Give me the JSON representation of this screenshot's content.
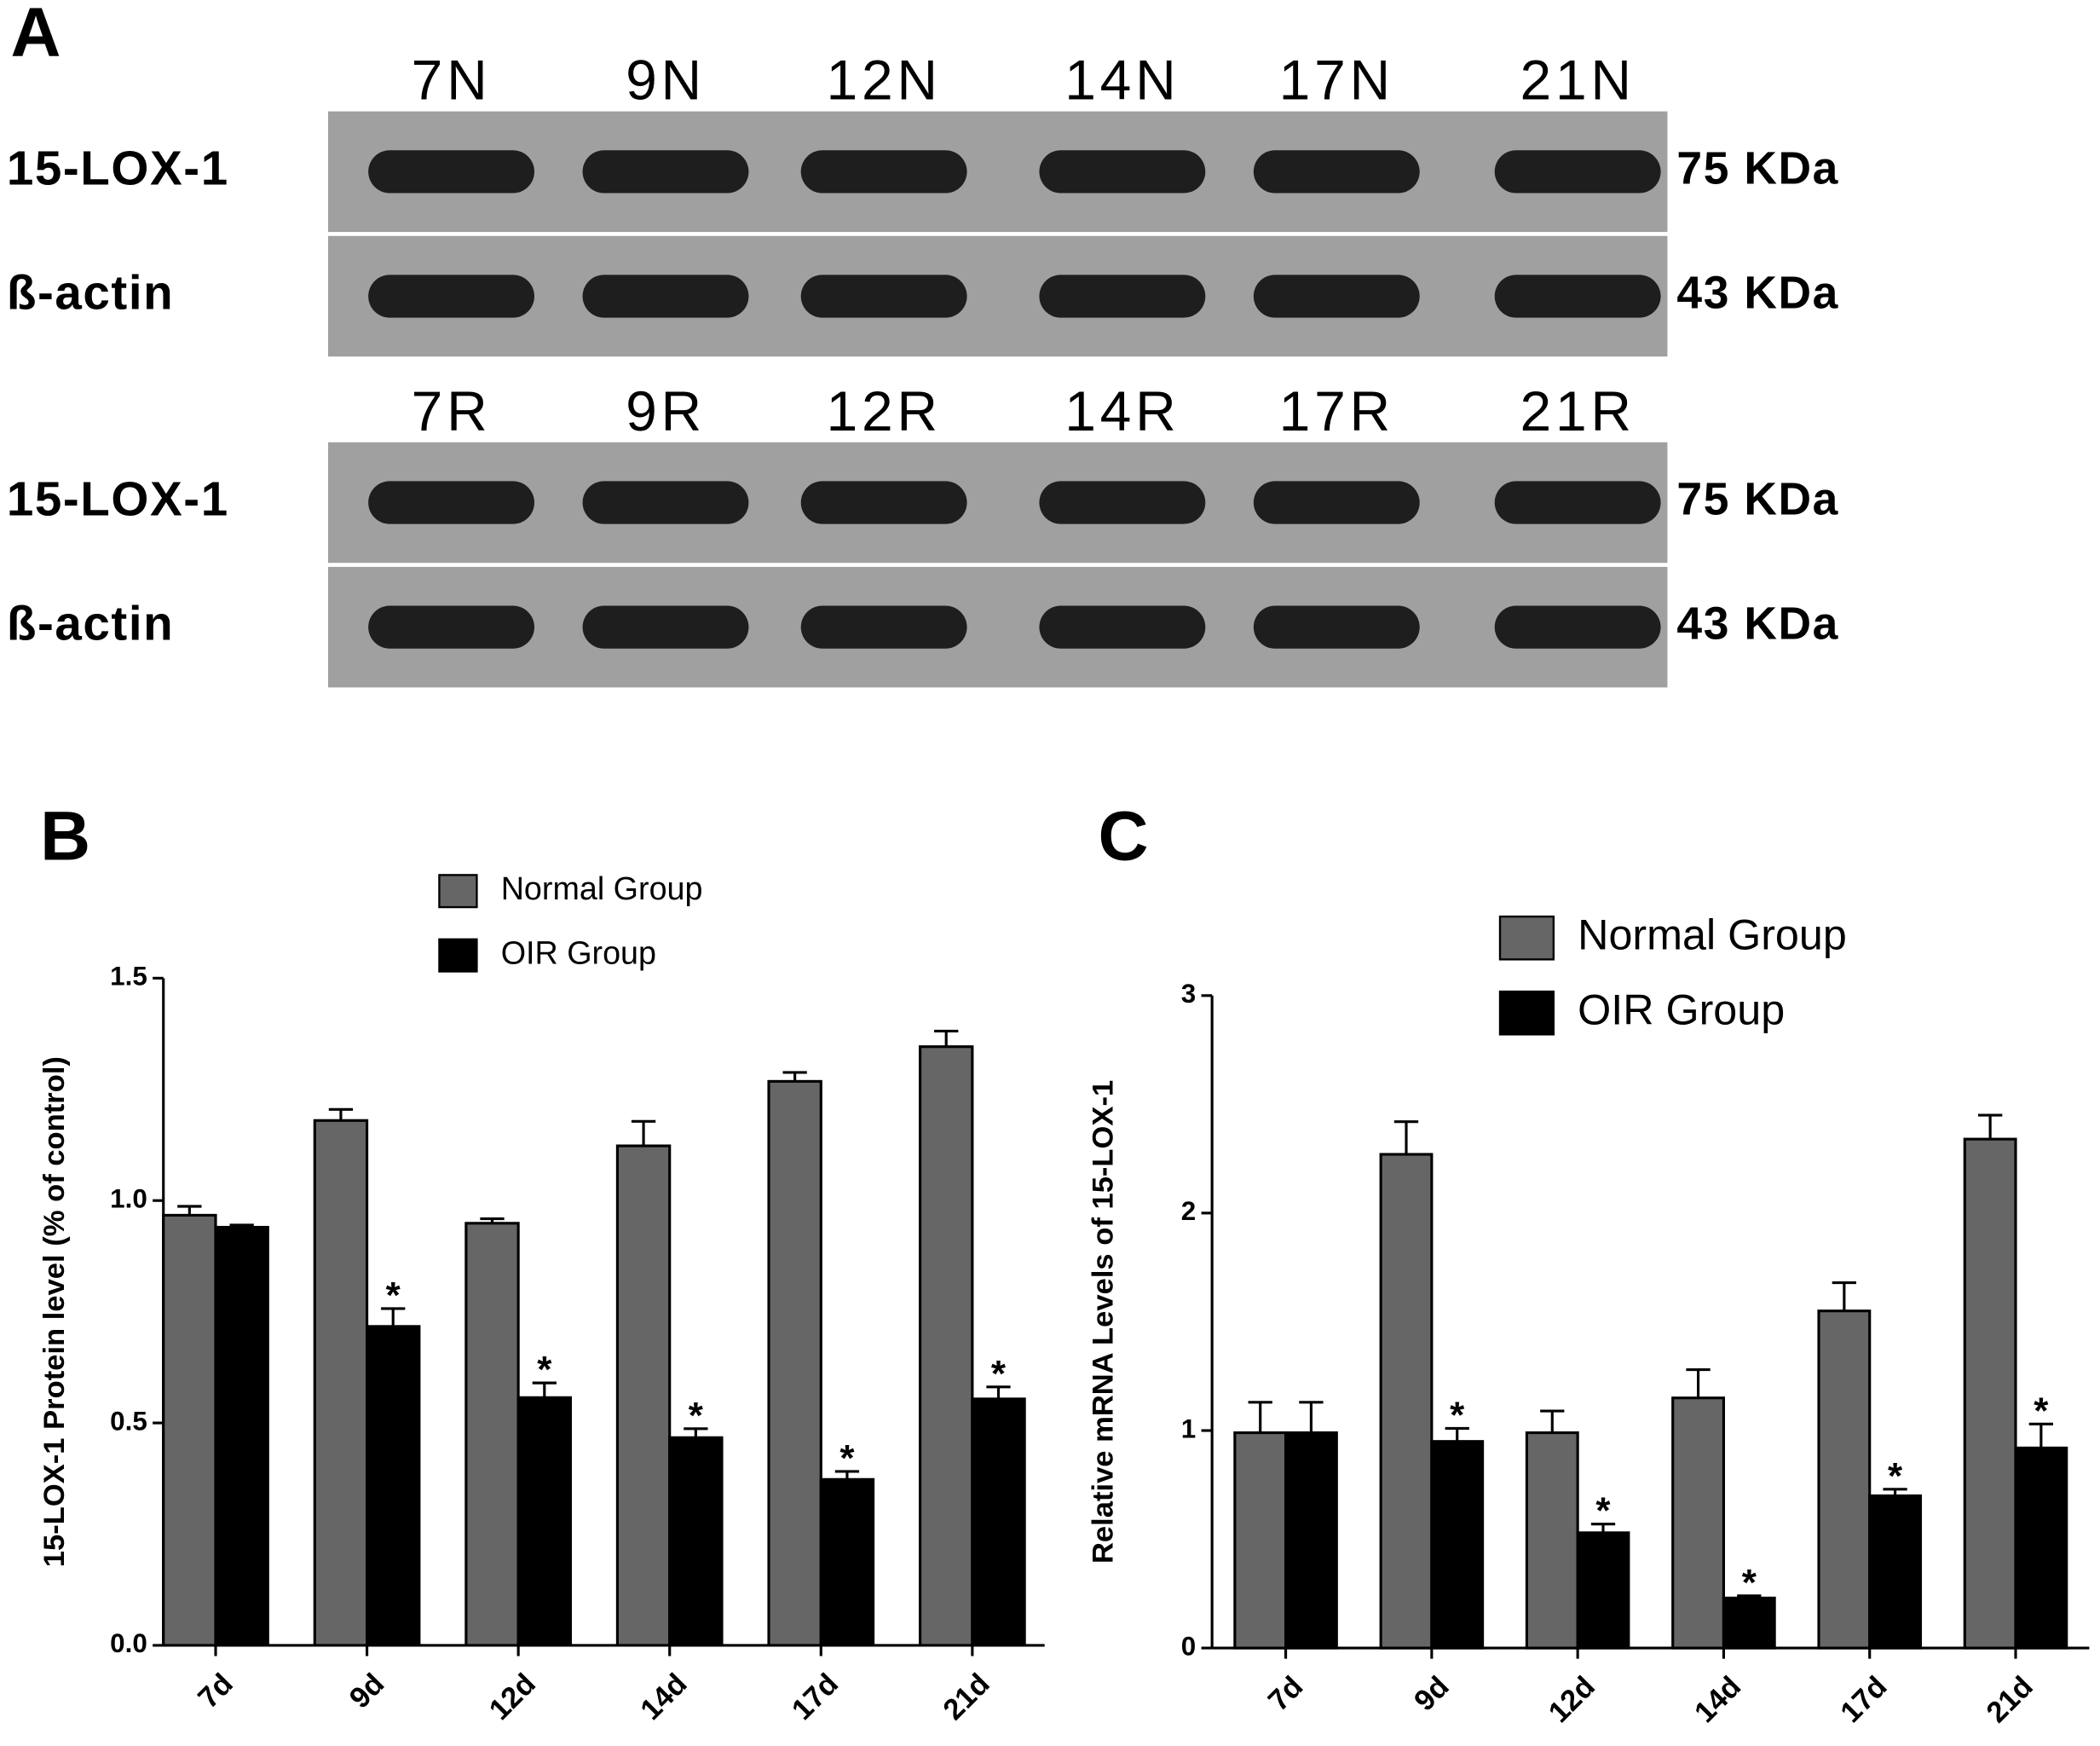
{
  "blot": {
    "panel": "A",
    "groups": [
      {
        "lanes": [
          "7N",
          "9N",
          "12N",
          "14N",
          "17N",
          "21N"
        ],
        "rows": [
          {
            "label": "15-LOX-1",
            "size": "75 KDa"
          },
          {
            "label": "ß-actin",
            "size": "43 KDa"
          }
        ]
      },
      {
        "lanes": [
          "7R",
          "9R",
          "12R",
          "14R",
          "17R",
          "21R"
        ],
        "rows": [
          {
            "label": "15-LOX-1",
            "size": "75 KDa"
          },
          {
            "label": "ß-actin",
            "size": "43 KDa"
          }
        ]
      }
    ]
  },
  "chart_data": [
    {
      "type": "bar",
      "panel": "B",
      "y_label": "15-LOX-1 Protein level (% of control)",
      "categories": [
        "7d",
        "9d",
        "12d",
        "14d",
        "17d",
        "21d"
      ],
      "series": [
        {
          "name": "Normal Group",
          "color": "#666666",
          "values": [
            0.967,
            1.18,
            0.949,
            1.123,
            1.268,
            1.346
          ],
          "errors": [
            0.02,
            0.025,
            0.01,
            0.055,
            0.02,
            0.035
          ]
        },
        {
          "name": "OIR Group",
          "color": "#000000",
          "values": [
            0.94,
            0.717,
            0.557,
            0.467,
            0.373,
            0.554
          ],
          "errors": [
            0.005,
            0.04,
            0.033,
            0.02,
            0.018,
            0.027
          ],
          "significance": [
            null,
            "*",
            "*",
            "*",
            "*",
            "*"
          ]
        }
      ],
      "ylim": [
        0,
        1.5
      ],
      "yticks": [
        {
          "value": 0,
          "label": "0.0"
        },
        0.5,
        {
          "value": 1,
          "label": "1.0"
        },
        1.5
      ]
    },
    {
      "type": "bar",
      "panel": "C",
      "y_label": "Relative mRNA Levels of 15-LOX-1",
      "categories": [
        "7d",
        "9d",
        "12d",
        "14d",
        "17d",
        "21d"
      ],
      "series": [
        {
          "name": "Normal Group",
          "color": "#666666",
          "values": [
            0.99,
            2.27,
            0.99,
            1.15,
            1.55,
            2.34
          ],
          "errors": [
            0.14,
            0.15,
            0.1,
            0.13,
            0.13,
            0.11
          ]
        },
        {
          "name": "OIR Group",
          "color": "#000000",
          "values": [
            0.99,
            0.95,
            0.53,
            0.23,
            0.7,
            0.92
          ],
          "errors": [
            0.14,
            0.06,
            0.04,
            0.01,
            0.03,
            0.11
          ],
          "significance": [
            null,
            "*",
            "*",
            "*",
            "*",
            "*"
          ]
        }
      ],
      "ylim": [
        0,
        3
      ],
      "yticks": [
        0,
        1,
        2,
        3
      ]
    }
  ]
}
